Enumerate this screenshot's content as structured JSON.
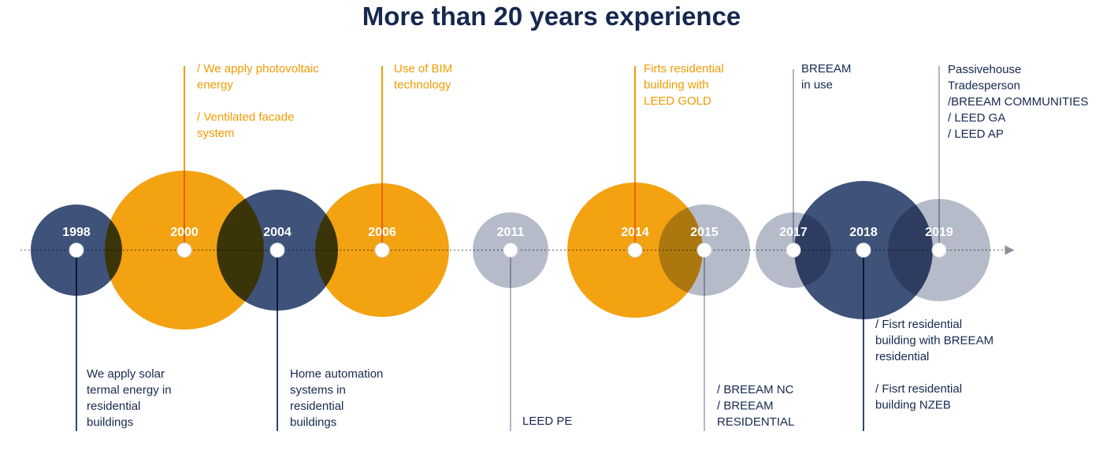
{
  "title": "More than 20 years experience",
  "colors": {
    "navy": "#2f4570",
    "orange": "#f29b00",
    "grey": "#b0b6c5",
    "dark_text": "#16284f"
  },
  "milestones": [
    {
      "year": "1998",
      "color": "navy",
      "side": "below",
      "lines": [
        "We apply solar",
        "termal energy in",
        "residential",
        "buildings"
      ]
    },
    {
      "year": "2000",
      "color": "orange",
      "side": "above",
      "lines": [
        "/ We apply photovoltaic",
        "energy",
        "",
        "/ Ventilated facade",
        "system"
      ]
    },
    {
      "year": "2004",
      "color": "navy",
      "side": "below",
      "lines": [
        "Home automation",
        "systems in",
        "residential",
        "buildings"
      ]
    },
    {
      "year": "2006",
      "color": "orange",
      "side": "above",
      "lines": [
        "Use of BIM",
        "technology"
      ]
    },
    {
      "year": "2011",
      "color": "grey",
      "side": "below",
      "lines": [
        "LEED PE"
      ]
    },
    {
      "year": "2014",
      "color": "orange",
      "side": "above",
      "lines": [
        "Firts residential",
        "building with",
        "LEED GOLD"
      ]
    },
    {
      "year": "2015",
      "color": "grey",
      "side": "below",
      "lines": [
        "/ BREEAM NC",
        "/ BREEAM",
        "RESIDENTIAL"
      ]
    },
    {
      "year": "2017",
      "color": "grey",
      "side": "above",
      "lines": [
        "BREEAM",
        "in use"
      ]
    },
    {
      "year": "2018",
      "color": "navy",
      "side": "below",
      "lines": [
        "/ Fisrt residential",
        "building with BREEAM",
        "residential",
        "",
        "/ Fisrt residential",
        "building NZEB"
      ]
    },
    {
      "year": "2019",
      "color": "grey",
      "side": "above",
      "lines": [
        "Passivehouse",
        "Tradesperson",
        "/BREEAM COMMUNITIES",
        "/ LEED GA",
        "/ LEED AP"
      ]
    }
  ]
}
